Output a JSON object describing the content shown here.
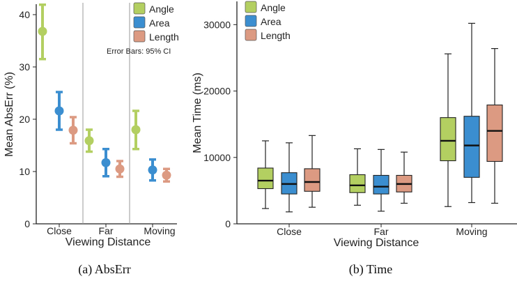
{
  "colors": {
    "angle": "#b3cf61",
    "area": "#3b8fd0",
    "length": "#dd9a82",
    "axis": "#222222",
    "separator": "#9a9a9a"
  },
  "captions": {
    "a": "(a)  AbsErr",
    "b": "(b)  Time"
  },
  "chart_data": [
    {
      "type": "errorbar",
      "title": "",
      "xlabel": "Viewing Distance",
      "ylabel": "Mean AbsErr (%)",
      "ylim": [
        0,
        42
      ],
      "yticks": [
        0,
        10,
        20,
        30,
        40
      ],
      "categories": [
        "Close",
        "Far",
        "Moving"
      ],
      "grid": false,
      "legend_placement": "top-right",
      "annotation": "Error Bars: 95% CI",
      "series": [
        {
          "name": "Angle",
          "color": "#b3cf61",
          "mean": [
            36.8,
            15.9,
            18.0
          ],
          "ci_low": [
            31.5,
            13.8,
            14.3
          ],
          "ci_high": [
            41.9,
            18.0,
            21.6
          ]
        },
        {
          "name": "Area",
          "color": "#3b8fd0",
          "mean": [
            21.6,
            11.7,
            10.3
          ],
          "ci_low": [
            18.0,
            9.1,
            8.3
          ],
          "ci_high": [
            25.2,
            14.3,
            12.3
          ]
        },
        {
          "name": "Length",
          "color": "#dd9a82",
          "mean": [
            17.9,
            10.5,
            9.3
          ],
          "ci_low": [
            15.4,
            9.0,
            8.1
          ],
          "ci_high": [
            20.4,
            12.0,
            10.5
          ]
        }
      ]
    },
    {
      "type": "box",
      "title": "",
      "xlabel": "Viewing Distance",
      "ylabel": "Mean Time (ms)",
      "ylim": [
        0,
        33500
      ],
      "yticks": [
        0,
        10000,
        20000,
        30000
      ],
      "categories": [
        "Close",
        "Far",
        "Moving"
      ],
      "grid": false,
      "legend_placement": "top-left",
      "series": [
        {
          "name": "Angle",
          "color": "#b3cf61",
          "boxes": [
            {
              "min": 2300,
              "q1": 5300,
              "median": 6500,
              "q3": 8400,
              "max": 12500
            },
            {
              "min": 2800,
              "q1": 4700,
              "median": 5800,
              "q3": 7400,
              "max": 11300
            },
            {
              "min": 2600,
              "q1": 9500,
              "median": 12500,
              "q3": 16000,
              "max": 25600
            }
          ]
        },
        {
          "name": "Area",
          "color": "#3b8fd0",
          "boxes": [
            {
              "min": 1800,
              "q1": 4500,
              "median": 6000,
              "q3": 7700,
              "max": 12200
            },
            {
              "min": 1900,
              "q1": 4500,
              "median": 5600,
              "q3": 7300,
              "max": 11200
            },
            {
              "min": 3200,
              "q1": 7000,
              "median": 11800,
              "q3": 16200,
              "max": 30200
            }
          ]
        },
        {
          "name": "Length",
          "color": "#dd9a82",
          "boxes": [
            {
              "min": 2500,
              "q1": 4900,
              "median": 6300,
              "q3": 8300,
              "max": 13300
            },
            {
              "min": 3100,
              "q1": 4800,
              "median": 6000,
              "q3": 7300,
              "max": 10800
            },
            {
              "min": 3100,
              "q1": 9400,
              "median": 14000,
              "q3": 17900,
              "max": 26400
            }
          ]
        }
      ]
    }
  ]
}
